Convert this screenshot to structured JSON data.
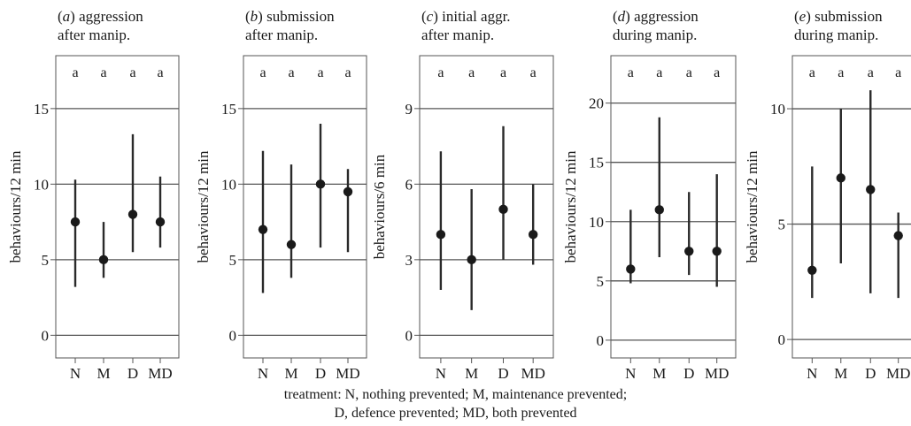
{
  "caption": {
    "line1": "treatment: N, nothing prevented; M, maintenance prevented;",
    "line2": "D, defence prevented; MD, both prevented"
  },
  "chart_data": [
    {
      "type": "scatter",
      "panel_letter": "a",
      "title_line1": "aggression",
      "title_line2": "after manip.",
      "ylabel": "behaviours/12 min",
      "categories": [
        "N",
        "M",
        "D",
        "MD"
      ],
      "group_letters": [
        "a",
        "a",
        "a",
        "a"
      ],
      "values": [
        7.5,
        5,
        8,
        7.5
      ],
      "lower": [
        3.2,
        3.8,
        5.5,
        5.8
      ],
      "upper": [
        10.3,
        7.5,
        13.3,
        10.5
      ],
      "ylim": [
        -1.5,
        18.5
      ],
      "yticks": [
        0,
        5,
        10,
        15
      ],
      "grid": true
    },
    {
      "type": "scatter",
      "panel_letter": "b",
      "title_line1": "submission",
      "title_line2": "after manip.",
      "ylabel": "behaviours/12 min",
      "categories": [
        "N",
        "M",
        "D",
        "MD"
      ],
      "group_letters": [
        "a",
        "a",
        "a",
        "a"
      ],
      "values": [
        7,
        6,
        10,
        9.5
      ],
      "lower": [
        2.8,
        3.8,
        5.8,
        5.5
      ],
      "upper": [
        12.2,
        11.3,
        14,
        11
      ],
      "ylim": [
        -1.5,
        18.5
      ],
      "yticks": [
        0,
        5,
        10,
        15
      ],
      "grid": true
    },
    {
      "type": "scatter",
      "panel_letter": "c",
      "title_line1": "initial aggr.",
      "title_line2": "after manip.",
      "ylabel": "behaviours/6 min",
      "categories": [
        "N",
        "M",
        "D",
        "MD"
      ],
      "group_letters": [
        "a",
        "a",
        "a",
        "a"
      ],
      "values": [
        4,
        3,
        5,
        4
      ],
      "lower": [
        1.8,
        1,
        3,
        2.8
      ],
      "upper": [
        7.3,
        5.8,
        8.3,
        6
      ],
      "ylim": [
        -0.9,
        11.1
      ],
      "yticks": [
        0,
        3,
        6,
        9
      ],
      "grid": true
    },
    {
      "type": "scatter",
      "panel_letter": "d",
      "title_line1": "aggression",
      "title_line2": "during manip.",
      "ylabel": "behaviours/12 min",
      "categories": [
        "N",
        "M",
        "D",
        "MD"
      ],
      "group_letters": [
        "a",
        "a",
        "a",
        "a"
      ],
      "values": [
        6,
        11,
        7.5,
        7.5
      ],
      "lower": [
        4.8,
        7,
        5.5,
        4.5
      ],
      "upper": [
        11,
        18.8,
        12.5,
        14
      ],
      "ylim": [
        -1.5,
        24
      ],
      "yticks": [
        0,
        5,
        10,
        15,
        20
      ],
      "grid": true
    },
    {
      "type": "scatter",
      "panel_letter": "e",
      "title_line1": "submission",
      "title_line2": "during manip.",
      "ylabel": "behaviours/12 min",
      "categories": [
        "N",
        "M",
        "D",
        "MD"
      ],
      "group_letters": [
        "a",
        "a",
        "a",
        "a"
      ],
      "values": [
        3,
        7,
        6.5,
        4.5
      ],
      "lower": [
        1.8,
        3.3,
        2,
        1.8
      ],
      "upper": [
        7.5,
        10,
        10.8,
        5.5
      ],
      "ylim": [
        -0.8,
        12.3
      ],
      "yticks": [
        0,
        5,
        10
      ],
      "grid": true
    }
  ]
}
